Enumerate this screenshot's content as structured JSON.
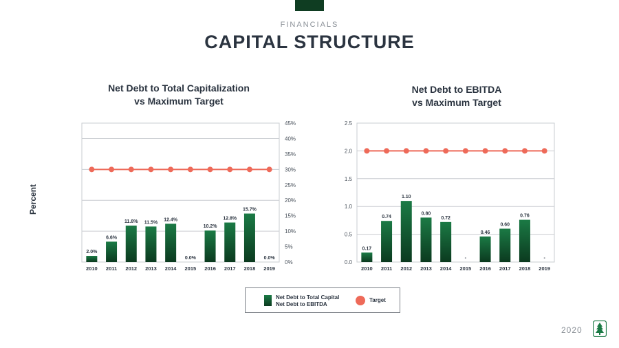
{
  "header": {
    "eyebrow": "FINANCIALS",
    "title": "CAPITAL STRUCTURE"
  },
  "y_axis_unit_label": "Percent",
  "colors": {
    "bar_top": "#1b7a45",
    "bar_bottom": "#0b3a1f",
    "target": "#ee6a59",
    "grid": "#c9ccd0",
    "brand": "#0f3d22"
  },
  "chart_data": [
    {
      "type": "bar",
      "title_line1": "Net Debt to Total Capitalization",
      "title_line2": "vs Maximum Target",
      "categories": [
        "2010",
        "2011",
        "2012",
        "2013",
        "2014",
        "2015",
        "2016",
        "2017",
        "2018",
        "2019"
      ],
      "series": [
        {
          "name": "Net Debt to Total Capital",
          "values": [
            2.0,
            6.6,
            11.8,
            11.5,
            12.4,
            0.0,
            10.2,
            12.8,
            15.7,
            0.0
          ]
        },
        {
          "name": "Target",
          "values": [
            30,
            30,
            30,
            30,
            30,
            30,
            30,
            30,
            30,
            30
          ]
        }
      ],
      "data_labels": [
        "2.0%",
        "6.6%",
        "11.8%",
        "11.5%",
        "12.4%",
        "0.0%",
        "10.2%",
        "12.8%",
        "15.7%",
        "0.0%"
      ],
      "yticks": [
        "0%",
        "5%",
        "10%",
        "15%",
        "20%",
        "25%",
        "30%",
        "35%",
        "40%",
        "45%"
      ],
      "ylim": [
        0,
        45
      ],
      "y_axis_side": "right"
    },
    {
      "type": "bar",
      "title_line1": "Net Debt to EBITDA",
      "title_line2": "vs Maximum Target",
      "categories": [
        "2010",
        "2011",
        "2012",
        "2013",
        "2014",
        "2015",
        "2016",
        "2017",
        "2018",
        "2019"
      ],
      "series": [
        {
          "name": "Net Debt to EBITDA",
          "values": [
            0.17,
            0.74,
            1.1,
            0.8,
            0.72,
            0,
            0.46,
            0.6,
            0.76,
            0
          ]
        },
        {
          "name": "Target",
          "values": [
            2.0,
            2.0,
            2.0,
            2.0,
            2.0,
            2.0,
            2.0,
            2.0,
            2.0,
            2.0
          ]
        }
      ],
      "data_labels": [
        "0.17",
        "0.74",
        "1.10",
        "0.80",
        "0.72",
        "-",
        "0.46",
        "0.60",
        "0.76",
        "-"
      ],
      "yticks": [
        "0.0",
        "0.5",
        "1.0",
        "1.5",
        "2.0",
        "2.5"
      ],
      "ylim": [
        0,
        2.5
      ],
      "y_axis_side": "left"
    }
  ],
  "legend": {
    "bar_line1": "Net Debt to Total Capital",
    "bar_line2": "Net Debt to EBITDA",
    "target": "Target"
  },
  "footer": {
    "year": "2020"
  }
}
